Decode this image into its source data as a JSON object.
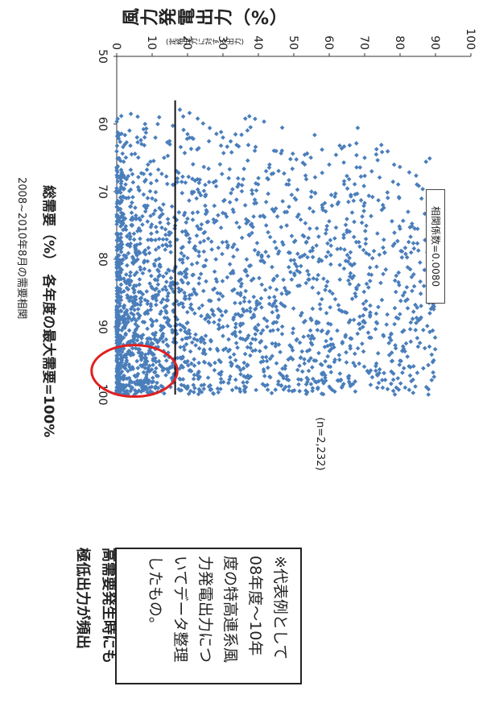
{
  "chart_data": {
    "type": "scatter",
    "title": "",
    "xlabel": "総需要（%）　各年度の最大需要=100%",
    "ylabel": "風力発電出力（%）",
    "ylabel_sub": "(定格出力に対する出力)",
    "xlim": [
      50,
      100
    ],
    "ylim": [
      0,
      100
    ],
    "xticks": [
      "50",
      "60",
      "70",
      "80",
      "90",
      "100"
    ],
    "yticks": [
      "0",
      "10",
      "20",
      "30",
      "40",
      "50",
      "60",
      "70",
      "80",
      "90",
      "100"
    ],
    "grid": false,
    "marker_color": "#4a7ebb",
    "sample_points": [
      [
        58.5,
        4.0
      ],
      [
        59,
        12
      ],
      [
        60,
        8
      ],
      [
        61.5,
        20
      ],
      [
        62,
        30
      ],
      [
        63,
        15
      ],
      [
        64,
        45
      ],
      [
        65,
        70
      ],
      [
        66,
        60
      ],
      [
        67,
        72
      ],
      [
        68,
        40
      ],
      [
        69,
        25
      ],
      [
        70,
        55
      ],
      [
        71,
        10
      ],
      [
        72,
        58
      ],
      [
        73,
        33
      ],
      [
        74,
        20
      ],
      [
        75,
        48
      ],
      [
        76,
        65
      ],
      [
        77,
        12
      ],
      [
        78,
        78
      ],
      [
        79,
        40
      ],
      [
        80,
        28
      ],
      [
        81,
        52
      ],
      [
        82,
        18
      ],
      [
        83,
        63
      ],
      [
        84,
        84
      ],
      [
        85,
        35
      ],
      [
        86,
        8
      ],
      [
        87,
        45
      ],
      [
        88,
        22
      ],
      [
        89,
        55
      ],
      [
        90,
        30
      ],
      [
        91,
        68
      ],
      [
        92,
        12
      ],
      [
        93,
        42
      ],
      [
        94,
        25
      ],
      [
        95,
        80
      ],
      [
        96,
        15
      ],
      [
        97,
        35
      ],
      [
        98,
        8
      ],
      [
        99,
        20
      ],
      [
        100,
        5
      ],
      [
        100,
        88
      ]
    ],
    "trend": {
      "x": [
        56.5,
        100
      ],
      "y": [
        16.5,
        16.5
      ]
    },
    "n_label": "(n=2,232)",
    "correlation": "相関係数=0.0080",
    "highlight_ellipse": {
      "x": 96.5,
      "y": 5,
      "rx": 3.8,
      "ry": 5.5,
      "color": "#e02020"
    },
    "caption": "2008~2010年8月の需要相関"
  },
  "note_lines": [
    "※代表例として",
    "08年度～10年",
    "度の特高連系風",
    "力発電出力につ",
    "いてデータ整理",
    "したもの。"
  ],
  "annot_lines": [
    "高需要発生時にも",
    "極低出力が頻出"
  ]
}
